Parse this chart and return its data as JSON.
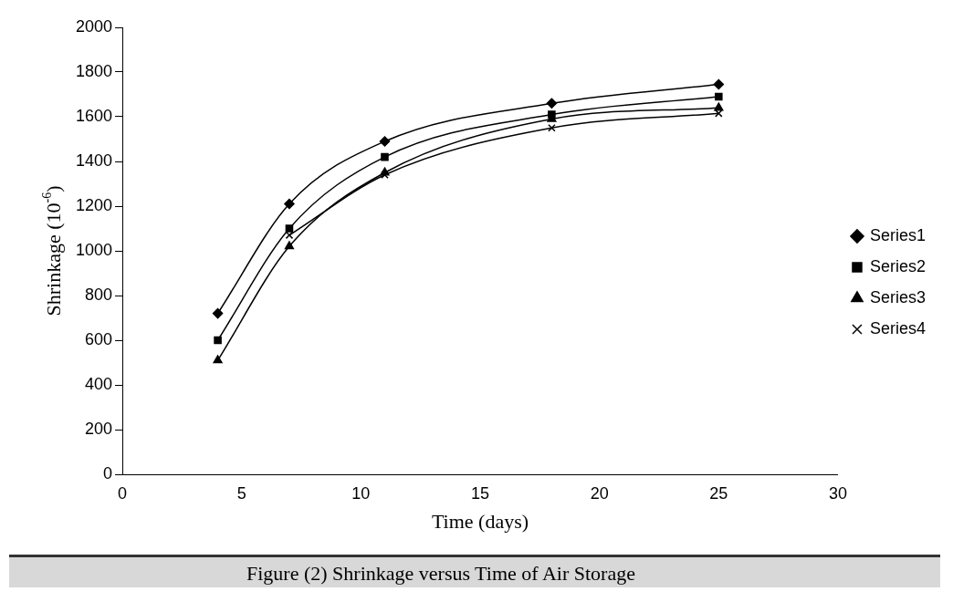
{
  "chart_data": {
    "type": "line",
    "xlabel": "Time (days)",
    "ylabel": "Shrinkage (10$^{-6}$)",
    "x": [
      4,
      7,
      11,
      18,
      25
    ],
    "xlim": [
      0,
      30
    ],
    "xticks": [
      0,
      5,
      10,
      15,
      20,
      25,
      30
    ],
    "ylim": [
      0,
      2000
    ],
    "yticks": [
      0,
      200,
      400,
      600,
      800,
      1000,
      1200,
      1400,
      1600,
      1800,
      2000
    ],
    "grid": false,
    "legend": "right",
    "line_style": "solid",
    "series": [
      {
        "name": "Series1",
        "color": "#000000",
        "marker": "diamond",
        "values": [
          720,
          1210,
          1490,
          1660,
          1745
        ]
      },
      {
        "name": "Series2",
        "color": "#000000",
        "marker": "square",
        "values": [
          600,
          1100,
          1420,
          1610,
          1690
        ]
      },
      {
        "name": "Series3",
        "color": "#000000",
        "marker": "triangle",
        "values": [
          510,
          1020,
          1350,
          1590,
          1640
        ]
      },
      {
        "name": "Series4",
        "color": "#000000",
        "marker": "cross",
        "values": [
          null,
          1070,
          1340,
          1550,
          1615
        ]
      }
    ],
    "annotations": [
      "Figure (2) Shrinkage versus Time of Air Storage"
    ]
  }
}
